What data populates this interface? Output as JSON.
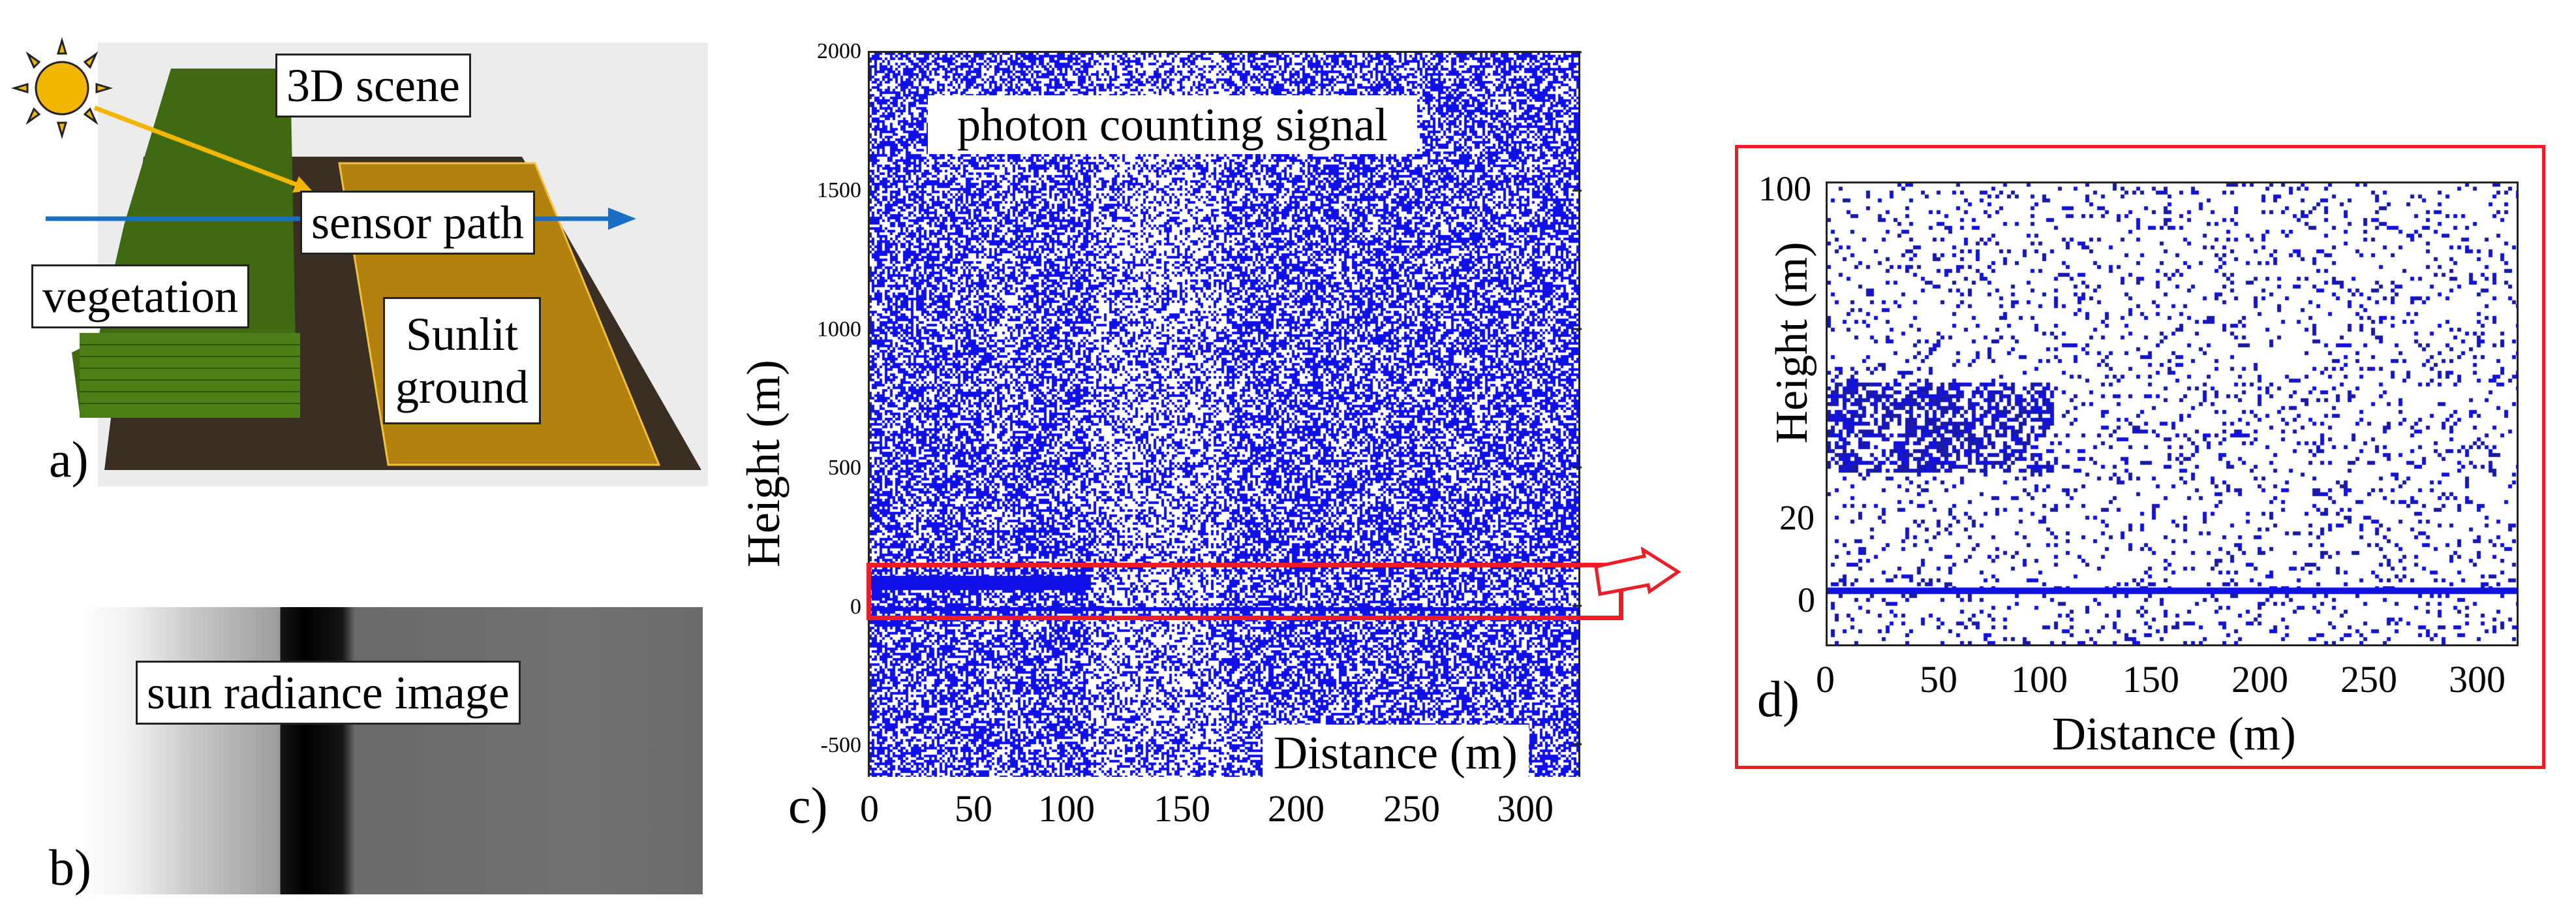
{
  "panel_a": {
    "letter": "a)",
    "labels": {
      "scene": "3D scene",
      "sensor_path": "sensor path",
      "vegetation": "vegetation",
      "sunlit_ground": [
        "Sunlit",
        "ground"
      ]
    },
    "colors": {
      "background": "#ececec",
      "vegetation": "#3f6a12",
      "ground_dark": "#3a2f22",
      "ground_sunlit": "#b3820e",
      "sun": "#f2b600",
      "sun_ray": "#f2b600",
      "sensor_path": "#1a6fc2"
    },
    "icons": [
      "sun-icon",
      "sensor-path-arrow"
    ]
  },
  "panel_b": {
    "letter": "b)",
    "label": "sun radiance image"
  },
  "panel_c": {
    "letter": "c)",
    "title": "photon counting signal",
    "xlabel": "Distance (m)",
    "ylabel": "Height (m)",
    "x_ticks": [
      "0",
      "50",
      "100",
      "150",
      "200",
      "250",
      "300"
    ],
    "y_ticks": [
      "2000",
      "1500",
      "1000",
      "500",
      "0",
      "-500"
    ],
    "colors": {
      "photons": "#1010e8",
      "highlight_box": "#ee1c24"
    }
  },
  "panel_d": {
    "letter": "d)",
    "xlabel": "Distance (m)",
    "ylabel": "Height (m)",
    "x_ticks": [
      "0",
      "50",
      "100",
      "150",
      "200",
      "250",
      "300"
    ],
    "y_ticks": [
      "100",
      "20",
      "0"
    ],
    "colors": {
      "photons": "#1a1aa8",
      "frame": "#ee1c24"
    }
  },
  "chart_data": [
    {
      "type": "scatter",
      "title": "photon counting signal",
      "xlabel": "Distance (m)",
      "ylabel": "Height (m)",
      "xlim": [
        0,
        300
      ],
      "ylim": [
        -600,
        2000
      ],
      "grid": false
    },
    {
      "type": "scatter",
      "title": "",
      "xlabel": "Distance (m)",
      "ylabel": "Height (m)",
      "xlim": [
        0,
        300
      ],
      "ylim": [
        -10,
        100
      ],
      "grid": false
    }
  ]
}
